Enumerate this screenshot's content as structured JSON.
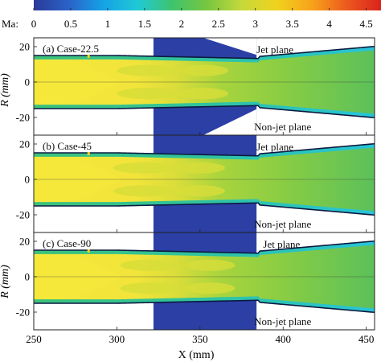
{
  "colorbar": {
    "label": "Ma:",
    "ticks": [
      "0",
      "0.5",
      "1",
      "1.5",
      "2",
      "2.5",
      "3",
      "3.5",
      "4",
      "4.5"
    ],
    "range": [
      0,
      4.7
    ],
    "colors": [
      "#2b3a99",
      "#2a62c7",
      "#15a2e6",
      "#1fc9d6",
      "#3fc46c",
      "#78c640",
      "#c6d93a",
      "#f0d21e",
      "#f7a31a",
      "#ed5a1d",
      "#d9231c"
    ]
  },
  "colors": {
    "core_yellow": "#f5e83a",
    "stream_green": "#7ac943",
    "edge_cyan": "#27c4d8",
    "slow_blue": "#2b3fa4",
    "wall": "#0c1a40"
  },
  "chart_data": {
    "type": "heatmap",
    "quantity": "Ma",
    "xlabel": "X (mm)",
    "ylabel": "R (mm)",
    "xlim": [
      250,
      455
    ],
    "ylim": [
      -30,
      25
    ],
    "xticks": [
      250,
      300,
      350,
      400,
      450
    ],
    "yticks": [
      20,
      0,
      -20
    ],
    "injection_window_x": [
      322,
      384
    ],
    "panels": [
      {
        "label": "(a) Case-22.5",
        "top_annotation": "Jet plane",
        "bottom_annotation": "Non-jet plane",
        "notch_x": 283,
        "shock_reflections_x": [
          284,
          318,
          352
        ]
      },
      {
        "label": "(b) Case-45",
        "top_annotation": "Jet plane",
        "bottom_annotation": "Non-jet plane",
        "notch_x": 283,
        "shock_reflections_x": [
          284,
          316,
          350
        ]
      },
      {
        "label": "(c) Case-90",
        "top_annotation": "Jet plane",
        "bottom_annotation": "Non-jet plane",
        "notch_x": 283,
        "shock_reflections_x": [
          284,
          320,
          356
        ]
      }
    ]
  }
}
